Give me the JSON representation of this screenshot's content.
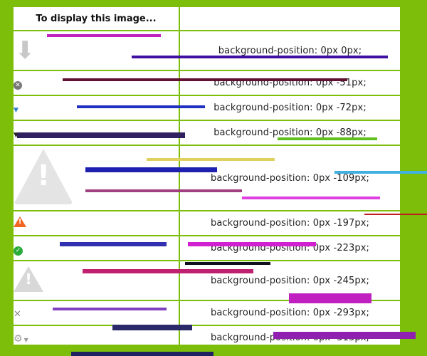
{
  "header": {
    "icon_col": "To display this image...",
    "css_col": ""
  },
  "rows": [
    {
      "icon": "down-arrow-icon",
      "css": "background-position: 0px 0px;"
    },
    {
      "icon": "circle-x-icon",
      "css": "background-position: 0px -51px;"
    },
    {
      "icon": "caret-down-blue-icon",
      "css": "background-position: 0px -72px;"
    },
    {
      "icon": "caret-down-black-icon",
      "css": "background-position: 0px -88px;"
    },
    {
      "icon": "warning-large-icon",
      "css": "background-position: 0px -109px;"
    },
    {
      "icon": "warning-orange-icon",
      "css": "background-position: 0px -197px;"
    },
    {
      "icon": "check-circle-icon",
      "css": "background-position: 0px -223px;"
    },
    {
      "icon": "warning-medium-icon",
      "css": "background-position: 0px -245px;"
    },
    {
      "icon": "x-icon",
      "css": "background-position: 0px -293px;"
    },
    {
      "icon": "gear-icon",
      "css": "background-position: 0px -313px;"
    }
  ],
  "colors": {
    "frame": "#7cbe0a",
    "warning_orange": "#f26522",
    "success_green": "#2bab3b",
    "blue_caret": "#2f7fd0"
  }
}
